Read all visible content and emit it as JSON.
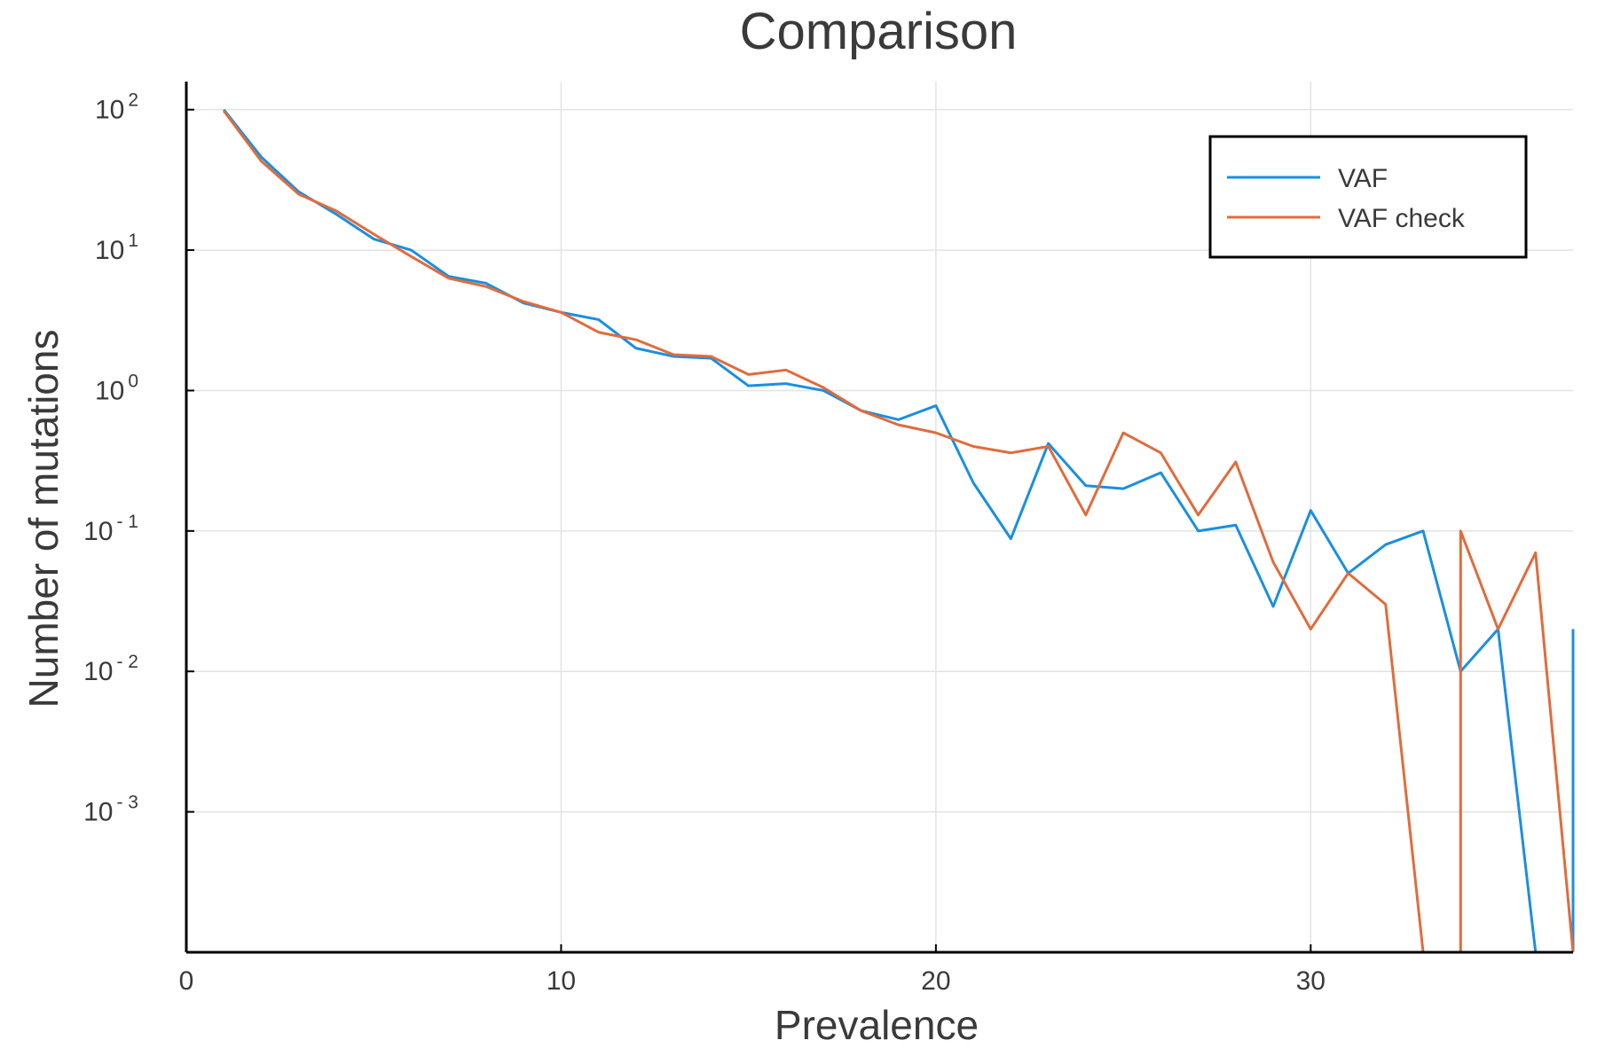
{
  "chart_data": {
    "type": "line",
    "title": "Comparison",
    "xlabel": "Prevalence",
    "ylabel": "Number of mutations",
    "xlim": [
      0,
      37
    ],
    "ylim_log10": [
      -4,
      2.2
    ],
    "yscale": "log10",
    "grid": true,
    "legend_position": "top-right",
    "x_ticks": [
      0,
      10,
      20,
      30
    ],
    "y_ticks": [
      {
        "base": "10",
        "exp": "2",
        "log": 2
      },
      {
        "base": "10",
        "exp": "1",
        "log": 1
      },
      {
        "base": "10",
        "exp": "0",
        "log": 0
      },
      {
        "base": "10",
        "exp": "- 1",
        "log": -1
      },
      {
        "base": "10",
        "exp": "- 2",
        "log": -2
      },
      {
        "base": "10",
        "exp": "- 3",
        "log": -3
      }
    ],
    "series": [
      {
        "name": "VAF",
        "color": "#1a8fe0",
        "x": [
          1,
          2,
          3,
          4,
          5,
          6,
          7,
          8,
          9,
          10,
          11,
          12,
          13,
          14,
          15,
          16,
          17,
          18,
          19,
          20,
          21,
          22,
          23,
          24,
          25,
          26,
          27,
          28,
          29,
          30,
          31,
          32,
          33,
          34,
          35,
          36,
          37
        ],
        "y": [
          100,
          46,
          26,
          18,
          12,
          10,
          6.5,
          5.8,
          4.2,
          3.6,
          3.2,
          2.0,
          1.75,
          1.7,
          1.08,
          1.12,
          1.0,
          0.72,
          0.62,
          0.78,
          0.22,
          0.088,
          0.42,
          0.21,
          0.2,
          0.26,
          0.1,
          0.11,
          0.029,
          0.14,
          0.05,
          0.08,
          0.1,
          0.01,
          0.02,
          null,
          0.02
        ]
      },
      {
        "name": "VAF check",
        "color": "#e06c3c",
        "x": [
          1,
          2,
          3,
          4,
          5,
          6,
          7,
          8,
          9,
          10,
          11,
          12,
          13,
          14,
          15,
          16,
          17,
          18,
          19,
          20,
          21,
          22,
          23,
          24,
          25,
          26,
          27,
          28,
          29,
          30,
          31,
          32,
          33,
          34,
          35,
          36,
          37
        ],
        "y": [
          98,
          43,
          25,
          19,
          13,
          9,
          6.3,
          5.5,
          4.3,
          3.6,
          2.6,
          2.3,
          1.8,
          1.75,
          1.3,
          1.4,
          1.05,
          0.72,
          0.57,
          0.5,
          0.4,
          0.36,
          0.4,
          0.13,
          0.5,
          0.36,
          0.13,
          0.31,
          0.06,
          0.02,
          0.05,
          0.03,
          null,
          0.1,
          0.02,
          0.07,
          null
        ]
      }
    ]
  }
}
